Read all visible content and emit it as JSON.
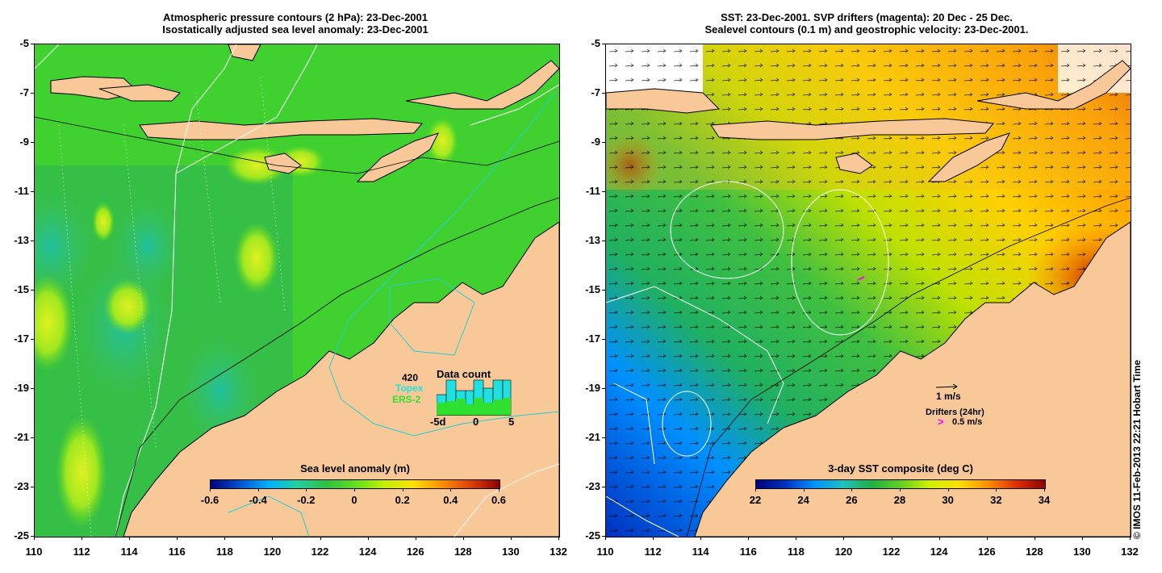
{
  "left_panel": {
    "title_line1": "Atmospheric pressure contours (2 hPa): 23-Dec-2001",
    "title_line2": "Isostatically adjusted sea level anomaly: 23-Dec-2001",
    "colorbar": {
      "title": "Sea level anomaly (m)",
      "labels": [
        "-0.6",
        "-0.4",
        "-0.2",
        "0",
        "0.2",
        "0.4",
        "0.6"
      ],
      "gradient": [
        "#00007f",
        "#0050d0",
        "#00b0ff",
        "#20d0a0",
        "#30c040",
        "#60e020",
        "#c0f000",
        "#ffe000",
        "#ff9000",
        "#e04000",
        "#900000"
      ]
    },
    "data_count": {
      "number": "420",
      "title": "Data count",
      "legend": [
        "Topex",
        "ERS-2"
      ],
      "x_labels": [
        "-5d",
        "0",
        "5"
      ]
    }
  },
  "right_panel": {
    "title_line1": "SST: 23-Dec-2001. SVP drifters (magenta): 20 Dec - 25 Dec.",
    "title_line2": "Sealevel contours (0.1 m) and geostrophic velocity: 23-Dec-2001.",
    "colorbar": {
      "title": "3-day SST composite (deg C)",
      "labels": [
        "22",
        "24",
        "26",
        "28",
        "30",
        "32",
        "34"
      ],
      "gradient": [
        "#00007f",
        "#0030c0",
        "#0090ff",
        "#20c0c0",
        "#20b040",
        "#60d020",
        "#d0f000",
        "#ffe000",
        "#ff9000",
        "#e03000",
        "#900000"
      ]
    },
    "legend": {
      "velocity": "1 m/s",
      "drifters_title": "Drifters (24hr)",
      "drifters_scale": "0.5 m/s",
      "drifter_marker": ">"
    }
  },
  "axes": {
    "y_labels": [
      "-5",
      "-7",
      "-9",
      "-11",
      "-13",
      "-15",
      "-17",
      "-19",
      "-21",
      "-23",
      "-25"
    ],
    "x_labels": [
      "110",
      "112",
      "114",
      "116",
      "118",
      "120",
      "122",
      "124",
      "126",
      "128",
      "130",
      "132"
    ]
  },
  "colors": {
    "land": "#f8c898",
    "cyan_tracks": "#20d0d0",
    "drifter": "#ff00ff"
  },
  "copyright": "© IMOS 11-Feb-2013 22:21 Hobart Time"
}
